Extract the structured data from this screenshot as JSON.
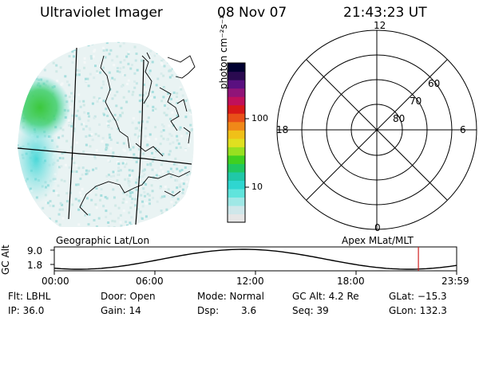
{
  "header": {
    "instrument": "Ultraviolet Imager",
    "date": "08 Nov 07",
    "time": "21:43:23 UT"
  },
  "map_label": "Geographic Lat/Lon",
  "polar": {
    "label": "Apex MLat/MLT",
    "mlt_labels": {
      "top": "12",
      "left": "18",
      "right": "6",
      "bottom": "0"
    },
    "lat_labels": [
      "60",
      "70",
      "80"
    ]
  },
  "colorbar": {
    "unit_label": "photon cm⁻²s⁻¹",
    "tick_100": "100",
    "tick_10": "10",
    "colors": [
      "#e6e6e6",
      "#cfe7ea",
      "#9fe8e6",
      "#60e4dc",
      "#2fd6d0",
      "#20c8a8",
      "#20c860",
      "#40d020",
      "#98e020",
      "#e0e020",
      "#f0c018",
      "#f08818",
      "#e85018",
      "#d81818",
      "#c0105a",
      "#901478",
      "#5a1080",
      "#2a0a50",
      "#000030"
    ]
  },
  "gc_plot": {
    "axis_label": "GC Alt",
    "ymax": "9.0",
    "ymin": "1.8",
    "x_ticks": [
      "00:00",
      "06:00",
      "12:00",
      "18:00",
      "23:59"
    ],
    "current_time_hours": 21.72,
    "marker_color": "#d02020"
  },
  "footer": {
    "flt": "Flt: LBHL",
    "door": "Door: Open",
    "mode": "Mode: Normal",
    "gc_alt": "GC Alt: 4.2 Re",
    "glat": "GLat: −15.3",
    "ip": "IP: 36.0",
    "gain": "Gain: 14",
    "dsp_label": "Dsp:",
    "dsp_value": "3.6",
    "seq": "Seq: 39",
    "glon": "GLon: 132.3"
  }
}
